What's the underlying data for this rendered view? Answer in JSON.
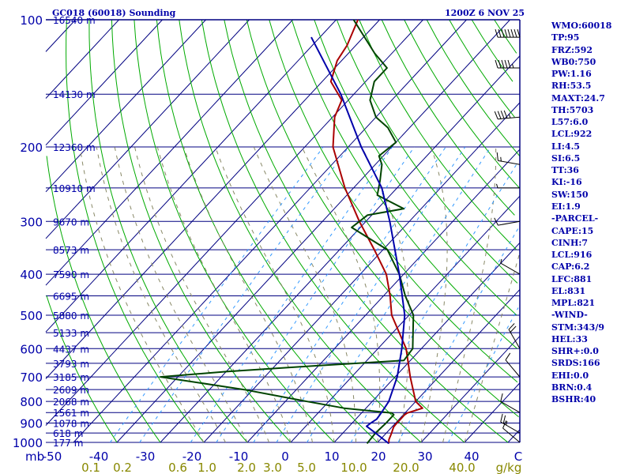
{
  "header": {
    "station_title": "GC018 (60018) Sounding",
    "time_label": "1200Z  6 NOV 25"
  },
  "indices": [
    "WMO:60018",
    "TP:95",
    "FRZ:592",
    "WB0:750",
    "PW:1.16",
    "RH:53.5",
    "MAXT:24.7",
    "TH:5703",
    "L57:6.0",
    "LCL:922",
    "LI:4.5",
    "SI:6.5",
    "TT:36",
    "KI:-16",
    "SW:150",
    "EI:1.9",
    "-PARCEL-",
    "CAPE:15",
    "CINH:7",
    "LCL:916",
    "CAP:6.2",
    "LFC:881",
    "EL:831",
    "MPL:821",
    "-WIND-",
    "STM:343/9",
    "HEL:33",
    "SHR+:0.0",
    "SRDS:166",
    "EHI:0.0",
    "BRN:0.4",
    "BSHR:40"
  ],
  "colors": {
    "background": "#ffffff",
    "isobar": "#000080",
    "isotherm": "#000080",
    "dry_adiabat": "#00aa00",
    "moist_adiabat": "#888866",
    "mixing_ratio": "#3399ff",
    "temperature": "#aa0000",
    "dewpoint": "#004400",
    "parcel": "#0000aa",
    "axis_text": "#0000aa",
    "mixing_text": "#888800",
    "panel_text": "#0000aa"
  },
  "chart_data": {
    "type": "skew-t log-p",
    "y_axis": {
      "label": "mb",
      "pressure_levels": [
        100,
        200,
        300,
        400,
        500,
        600,
        700,
        800,
        900,
        1000
      ],
      "pressure_labels": [
        "100",
        "200",
        "300",
        "400",
        "500",
        "600",
        "700",
        "800",
        "900",
        "1000"
      ],
      "range": [
        1000,
        100
      ]
    },
    "x_axis": {
      "unit": "C",
      "temperature_ticks": [
        "-50",
        "-40",
        "-30",
        "-20",
        "-10",
        "0",
        "10",
        "20",
        "30",
        "40",
        "C"
      ]
    },
    "mixing_ratio": {
      "unit": "g/kg",
      "values": [
        0.1,
        0.2,
        0.6,
        1.0,
        2.0,
        3.0,
        5.0,
        10.0,
        20.0,
        40.0
      ],
      "labels": [
        "0.1",
        "0.2",
        "0.6",
        "1.0",
        "2.0",
        "3.0",
        "5.0",
        "10.0",
        "20.0",
        "40.0"
      ]
    },
    "height_labels": [
      {
        "p": 100,
        "label": "16540 m"
      },
      {
        "p": 150,
        "label": "14130 m"
      },
      {
        "p": 200,
        "label": "12360 m"
      },
      {
        "p": 250,
        "label": "10910 m"
      },
      {
        "p": 300,
        "label": "9670 m"
      },
      {
        "p": 350,
        "label": "8573 m"
      },
      {
        "p": 400,
        "label": "7590 m"
      },
      {
        "p": 450,
        "label": "6695 m"
      },
      {
        "p": 500,
        "label": "5880 m"
      },
      {
        "p": 550,
        "label": "5133 m"
      },
      {
        "p": 600,
        "label": "4437 m"
      },
      {
        "p": 650,
        "label": "3793 m"
      },
      {
        "p": 700,
        "label": "3185 m"
      },
      {
        "p": 750,
        "label": "2609 m"
      },
      {
        "p": 800,
        "label": "2068 m"
      },
      {
        "p": 850,
        "label": "1561 m"
      },
      {
        "p": 900,
        "label": "1078 m"
      },
      {
        "p": 950,
        "label": "618 m"
      },
      {
        "p": 1000,
        "label": "177 m"
      }
    ],
    "series": [
      {
        "key": "temperature",
        "p": [
          1006,
          985,
          950,
          920,
          905,
          880,
          860,
          852,
          830,
          800,
          700,
          600,
          500,
          450,
          400,
          350,
          300,
          250,
          200,
          170,
          155,
          140,
          125,
          115,
          100
        ],
        "t": [
          22.8,
          22.0,
          21.2,
          20.4,
          20.3,
          20.3,
          20.3,
          20.5,
          23.0,
          20.0,
          13.5,
          6.5,
          -4.0,
          -8.5,
          -14.0,
          -22.0,
          -31.5,
          -42.0,
          -53.5,
          -59.5,
          -61.5,
          -68.0,
          -71.0,
          -72.0,
          -75.0
        ]
      },
      {
        "key": "dewpoint",
        "p": [
          1006,
          950,
          900,
          880,
          860,
          852,
          830,
          800,
          750,
          700,
          680,
          660,
          640,
          600,
          500,
          450,
          400,
          350,
          310,
          290,
          280,
          260,
          240,
          220,
          210,
          195,
          180,
          170,
          155,
          140,
          130,
          120,
          100
        ],
        "t": [
          17.8,
          17.5,
          17.8,
          17.8,
          17.8,
          17.0,
          5.0,
          -5.0,
          -22.0,
          -44.0,
          -30.0,
          -12.0,
          8.5,
          8.0,
          1.0,
          -5.0,
          -11.0,
          -19.0,
          -32.0,
          -31.0,
          -24.0,
          -33.0,
          -35.5,
          -38.5,
          -41.0,
          -40.0,
          -45.0,
          -50.0,
          -55.0,
          -58.0,
          -58.0,
          -64.0,
          -76.0
        ]
      },
      {
        "key": "parcel",
        "p": [
          1006,
          950,
          916,
          900,
          881,
          850,
          800,
          700,
          600,
          500,
          400,
          300,
          250,
          200,
          150,
          110
        ],
        "t": [
          22.8,
          17.5,
          14.0,
          14.3,
          14.8,
          14.5,
          13.8,
          10.5,
          5.5,
          -1.0,
          -11.0,
          -24.5,
          -33.5,
          -47.0,
          -63.0,
          -82.0
        ]
      }
    ],
    "wind_barbs": [
      {
        "p": 110,
        "dir": 270,
        "spd": 80
      },
      {
        "p": 130,
        "dir": 270,
        "spd": 55
      },
      {
        "p": 170,
        "dir": 265,
        "spd": 45
      },
      {
        "p": 220,
        "dir": 280,
        "spd": 15
      },
      {
        "p": 250,
        "dir": 270,
        "spd": 5
      },
      {
        "p": 300,
        "dir": 260,
        "spd": 10
      },
      {
        "p": 400,
        "dir": 300,
        "spd": 5
      },
      {
        "p": 600,
        "dir": 330,
        "spd": 20
      },
      {
        "p": 700,
        "dir": 320,
        "spd": 10
      },
      {
        "p": 850,
        "dir": 300,
        "spd": 10
      },
      {
        "p": 950,
        "dir": 300,
        "spd": 25
      },
      {
        "p": 1000,
        "dir": 310,
        "spd": 10
      }
    ]
  }
}
